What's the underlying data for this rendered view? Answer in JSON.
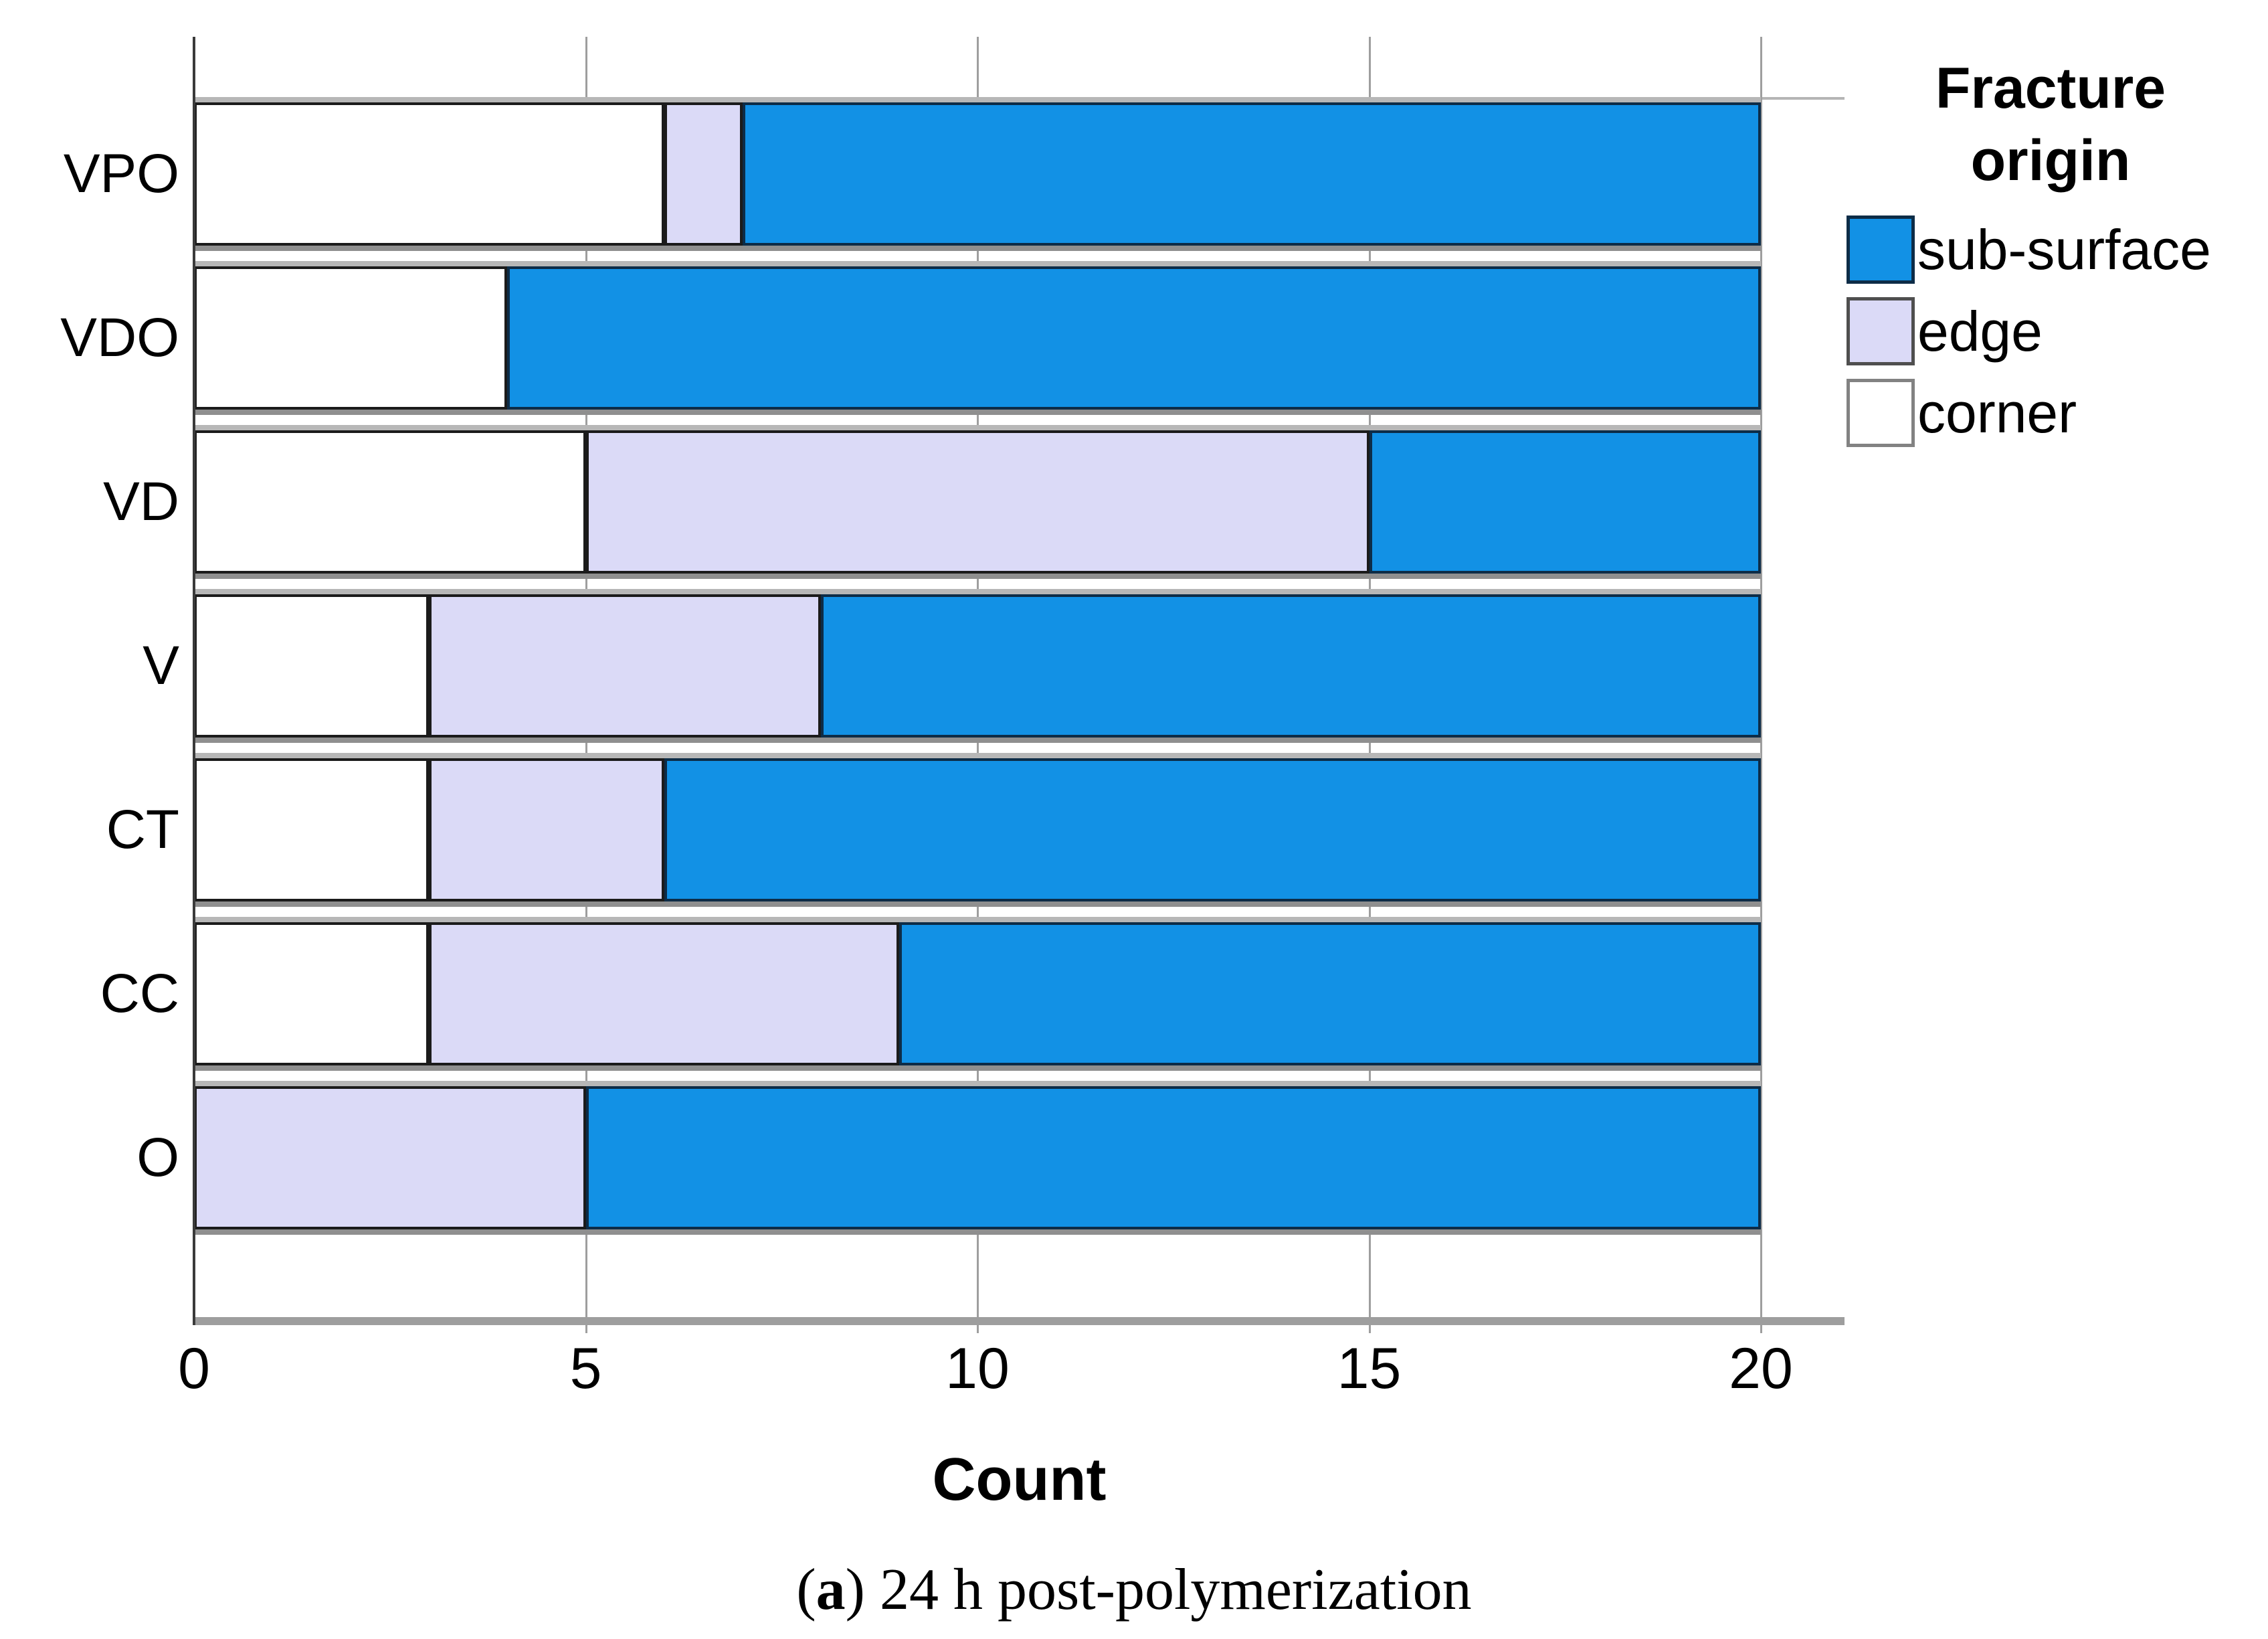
{
  "chart_data": {
    "type": "bar",
    "orientation": "horizontal",
    "stacked": true,
    "xlabel": "Count",
    "ylabel": "",
    "xlim": [
      0,
      20
    ],
    "xticks": [
      "0",
      "5",
      "10",
      "15",
      "20"
    ],
    "xtick_values": [
      0,
      5,
      10,
      15,
      20
    ],
    "grid": true,
    "legend_title": "Fracture origin",
    "legend_position": "right",
    "categories": [
      "VPO",
      "VDO",
      "VD",
      "V",
      "CT",
      "CC",
      "O"
    ],
    "series": [
      {
        "name": "sub-surface",
        "color": "#1291E5",
        "values": [
          13,
          16,
          5,
          12,
          14,
          11,
          15
        ]
      },
      {
        "name": "edge",
        "color": "#DBDAF7",
        "values": [
          1,
          0,
          10,
          5,
          3,
          6,
          5
        ]
      },
      {
        "name": "corner",
        "color": "#FFFFFF",
        "values": [
          6,
          4,
          5,
          3,
          3,
          3,
          0
        ]
      }
    ]
  },
  "axis": {
    "xlabel": "Count"
  },
  "legend": {
    "title_lines": [
      "Fracture",
      "origin"
    ],
    "items": [
      {
        "label": "sub-surface",
        "color": "#1291E5",
        "border": "#0D2C47"
      },
      {
        "label": "edge",
        "color": "#DBDAF7",
        "border": "#4F4F4F"
      },
      {
        "label": "corner",
        "color": "#FFFFFF",
        "border": "#828282"
      }
    ]
  },
  "caption": {
    "open": "(",
    "letter": "a",
    "rest": ") 24 h post-polymerization"
  },
  "colors": {
    "bar_blue": "#1291E5",
    "bar_blue_border": "#0D2C47",
    "bar_edge": "#DBDAF7",
    "bar_corner": "#FFFFFF",
    "segment_border": "#1B1B1B",
    "gridline": "#9E9E9E",
    "axis_left": "#3A3A3A",
    "axis_bottom": "#9E9E9E"
  }
}
